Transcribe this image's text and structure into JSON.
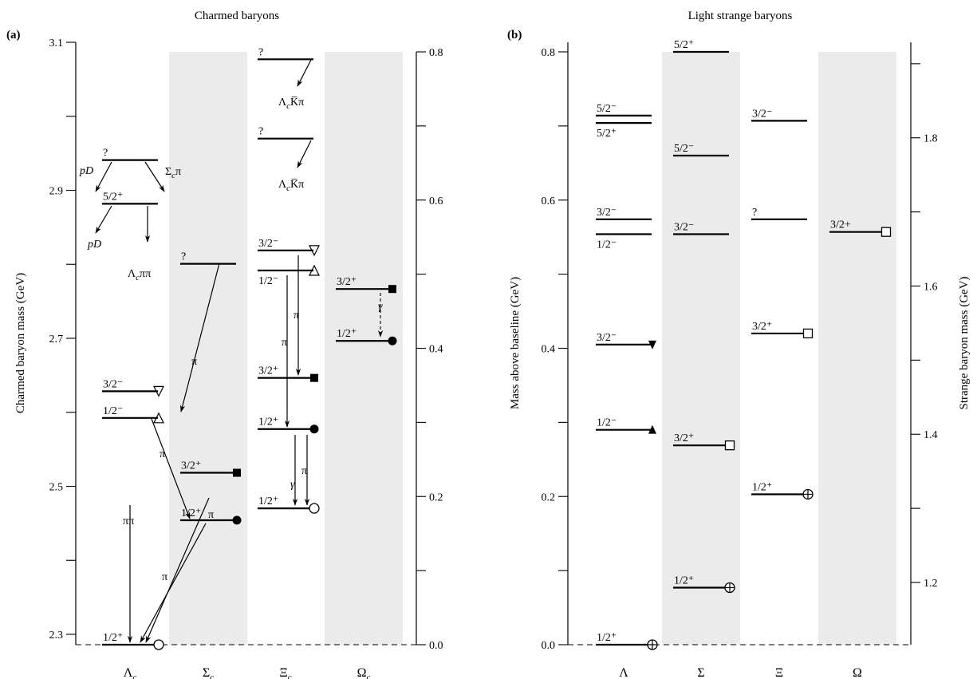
{
  "chart_data": [
    {
      "panel": "(a)",
      "title": "Charmed baryons",
      "type": "other",
      "ylabel_left": "Charmed baryon mass  (GeV)",
      "ylim_left": [
        2.286,
        3.1
      ],
      "yticks_left": [
        2.3,
        2.5,
        2.7,
        2.9,
        3.1
      ],
      "yticks_left_labels": [
        "2.3",
        "2.5",
        "2.7",
        "2.9",
        "3.1"
      ],
      "ylim_right": [
        0.0,
        0.8
      ],
      "yticks_right": [
        0.0,
        0.2,
        0.4,
        0.6,
        0.8
      ],
      "yticks_right_labels": [
        "0.0",
        "0.2",
        "0.4",
        "0.6",
        "0.8"
      ],
      "baseline_mass": 2.286,
      "columns": [
        {
          "name": "Λc",
          "base": "Λ",
          "sub": "c",
          "shaded": false
        },
        {
          "name": "Σc",
          "base": "Σ",
          "sub": "c",
          "shaded": true
        },
        {
          "name": "Ξc",
          "base": "Ξ",
          "sub": "c",
          "shaded": false
        },
        {
          "name": "Ωc",
          "base": "Ω",
          "sub": "c",
          "shaded": true
        }
      ],
      "levels": [
        {
          "col": 0,
          "delta": 0.0,
          "label": "1/2⁺",
          "marker": "circle-open"
        },
        {
          "col": 0,
          "delta": 0.306,
          "label": "1/2⁻",
          "marker": "delta"
        },
        {
          "col": 0,
          "delta": 0.342,
          "label": "3/2⁻",
          "marker": "nabla"
        },
        {
          "col": 0,
          "delta": 0.595,
          "label": "5/2⁺",
          "marker": "none"
        },
        {
          "col": 0,
          "delta": 0.654,
          "label": "?",
          "marker": "none"
        },
        {
          "col": 1,
          "delta": 0.168,
          "label": "1/2⁺",
          "marker": "circle-filled"
        },
        {
          "col": 1,
          "delta": 0.232,
          "label": "3/2⁺",
          "marker": "square-filled"
        },
        {
          "col": 1,
          "delta": 0.514,
          "label": "?",
          "marker": "none"
        },
        {
          "col": 2,
          "delta": 0.184,
          "label": "1/2⁺",
          "marker": "circle-open"
        },
        {
          "col": 2,
          "delta": 0.291,
          "label": "1/2⁺",
          "marker": "circle-filled"
        },
        {
          "col": 2,
          "delta": 0.36,
          "label": "3/2⁺",
          "marker": "square-filled"
        },
        {
          "col": 2,
          "delta": 0.505,
          "label": "1/2⁻",
          "marker": "delta"
        },
        {
          "col": 2,
          "delta": 0.532,
          "label": "3/2⁻",
          "marker": "nabla"
        },
        {
          "col": 2,
          "delta": 0.683,
          "label": "?",
          "marker": "none"
        },
        {
          "col": 2,
          "delta": 0.79,
          "label": "?",
          "marker": "none"
        },
        {
          "col": 3,
          "delta": 0.41,
          "label": "1/2⁺",
          "marker": "circle-filled"
        },
        {
          "col": 3,
          "delta": 0.48,
          "label": "3/2⁺",
          "marker": "square-filled"
        }
      ],
      "decay_labels": [
        "pD",
        "Σcπ",
        "pD",
        "Λcππ",
        "π",
        "ππ",
        "π",
        "π",
        "π",
        "π",
        "π",
        "π",
        "γ",
        "γ",
        "ΛcK̅π",
        "ΛcK̅π"
      ]
    },
    {
      "panel": "(b)",
      "title": "Light strange baryons",
      "type": "other",
      "ylabel_left": "Mass above baseline  (GeV)",
      "ylim_left": [
        0.0,
        0.8
      ],
      "yticks_left": [
        0.0,
        0.2,
        0.4,
        0.6,
        0.8
      ],
      "yticks_left_labels": [
        "0.0",
        "0.2",
        "0.4",
        "0.6",
        "0.8"
      ],
      "ylabel_right": "Strange baryon mass  (GeV)",
      "yticks_right": [
        1.2,
        1.4,
        1.6,
        1.8
      ],
      "yticks_right_labels": [
        "1.2",
        "1.4",
        "1.6",
        "1.8"
      ],
      "baseline_mass": 1.116,
      "columns": [
        {
          "name": "Λ",
          "base": "Λ",
          "sub": "",
          "shaded": false
        },
        {
          "name": "Σ",
          "base": "Σ",
          "sub": "",
          "shaded": true
        },
        {
          "name": "Ξ",
          "base": "Ξ",
          "sub": "",
          "shaded": false
        },
        {
          "name": "Ω",
          "base": "Ω",
          "sub": "",
          "shaded": true
        }
      ],
      "levels": [
        {
          "col": 0,
          "delta": 0.0,
          "label": "1/2⁺",
          "marker": "circle-plus"
        },
        {
          "col": 0,
          "delta": 0.29,
          "label": "1/2⁻",
          "marker": "triangle-up-filled"
        },
        {
          "col": 0,
          "delta": 0.405,
          "label": "3/2⁻",
          "marker": "triangle-down-filled"
        },
        {
          "col": 0,
          "delta": 0.554,
          "label": "1/2⁻",
          "marker": "none"
        },
        {
          "col": 0,
          "delta": 0.574,
          "label": "3/2⁻",
          "marker": "none"
        },
        {
          "col": 0,
          "delta": 0.704,
          "label": "5/2⁺",
          "marker": "none"
        },
        {
          "col": 0,
          "delta": 0.714,
          "label": "5/2⁻",
          "marker": "none"
        },
        {
          "col": 1,
          "delta": 0.077,
          "label": "1/2⁺",
          "marker": "circle-plus"
        },
        {
          "col": 1,
          "delta": 0.269,
          "label": "3/2⁺",
          "marker": "square-open"
        },
        {
          "col": 1,
          "delta": 0.554,
          "label": "3/2⁻",
          "marker": "none"
        },
        {
          "col": 1,
          "delta": 0.66,
          "label": "5/2⁻",
          "marker": "none"
        },
        {
          "col": 1,
          "delta": 0.8,
          "label": "5/2⁺",
          "marker": "none"
        },
        {
          "col": 2,
          "delta": 0.203,
          "label": "1/2⁺",
          "marker": "circle-plus"
        },
        {
          "col": 2,
          "delta": 0.42,
          "label": "3/2⁺",
          "marker": "square-open"
        },
        {
          "col": 2,
          "delta": 0.574,
          "label": "?",
          "marker": "none"
        },
        {
          "col": 2,
          "delta": 0.707,
          "label": "3/2⁻",
          "marker": "none"
        },
        {
          "col": 3,
          "delta": 0.557,
          "label": "3/2+",
          "marker": "square-open"
        }
      ]
    }
  ]
}
